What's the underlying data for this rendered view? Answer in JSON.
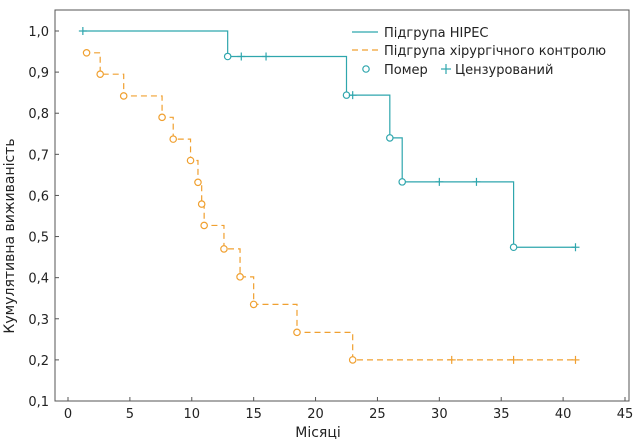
{
  "chart_data": {
    "type": "line",
    "xlabel": "Місяці",
    "ylabel": "Кумулятивна виживаність",
    "xlim": [
      0,
      45
    ],
    "ylim": [
      0.1,
      1.0
    ],
    "x_ticks": [
      "0",
      "5",
      "10",
      "15",
      "20",
      "25",
      "30",
      "35",
      "40",
      "45"
    ],
    "y_ticks": [
      "0,1",
      "0,2",
      "0,3",
      "0,4",
      "0,5",
      "0,6",
      "0,7",
      "0,8",
      "0,9",
      "1,0"
    ],
    "grid": false,
    "legend_position": "top-right",
    "legend": {
      "series_hipec": "Підгрупа HIPEC",
      "series_control": "Підгрупа хірургічного контролю",
      "death_marker": "Помер",
      "censored_marker": "Цензурований"
    },
    "colors": {
      "hipec": "#2fa6ad",
      "control": "#f0a030",
      "axis": "#555555"
    },
    "series": [
      {
        "name": "Підгрупа HIPEC",
        "line_style": "solid",
        "start": [
          1.2,
          1.0
        ],
        "end_x": 41,
        "events": [
          [
            12.9,
            0.938
          ],
          [
            22.5,
            0.844
          ],
          [
            26.0,
            0.74
          ],
          [
            27.0,
            0.633
          ],
          [
            36.0,
            0.474
          ]
        ],
        "censored": [
          [
            1.2,
            1.0
          ],
          [
            14.0,
            0.938
          ],
          [
            16.0,
            0.938
          ],
          [
            23.0,
            0.844
          ],
          [
            30.0,
            0.633
          ],
          [
            33.0,
            0.633
          ],
          [
            41.0,
            0.474
          ]
        ]
      },
      {
        "name": "Підгрупа хірургічного контролю",
        "line_style": "dashed",
        "start": [
          1.3,
          0.947
        ],
        "end_x": 41,
        "events": [
          [
            1.5,
            0.947
          ],
          [
            2.6,
            0.895
          ],
          [
            4.5,
            0.842
          ],
          [
            7.6,
            0.79
          ],
          [
            8.5,
            0.737
          ],
          [
            9.9,
            0.685
          ],
          [
            10.5,
            0.632
          ],
          [
            10.8,
            0.579
          ],
          [
            11.0,
            0.527
          ],
          [
            12.6,
            0.47
          ],
          [
            13.9,
            0.402
          ],
          [
            15.0,
            0.335
          ],
          [
            18.5,
            0.267
          ],
          [
            23.0,
            0.2
          ]
        ],
        "censored": [
          [
            31.0,
            0.2
          ],
          [
            36.0,
            0.2
          ],
          [
            41.0,
            0.2
          ]
        ]
      }
    ]
  }
}
